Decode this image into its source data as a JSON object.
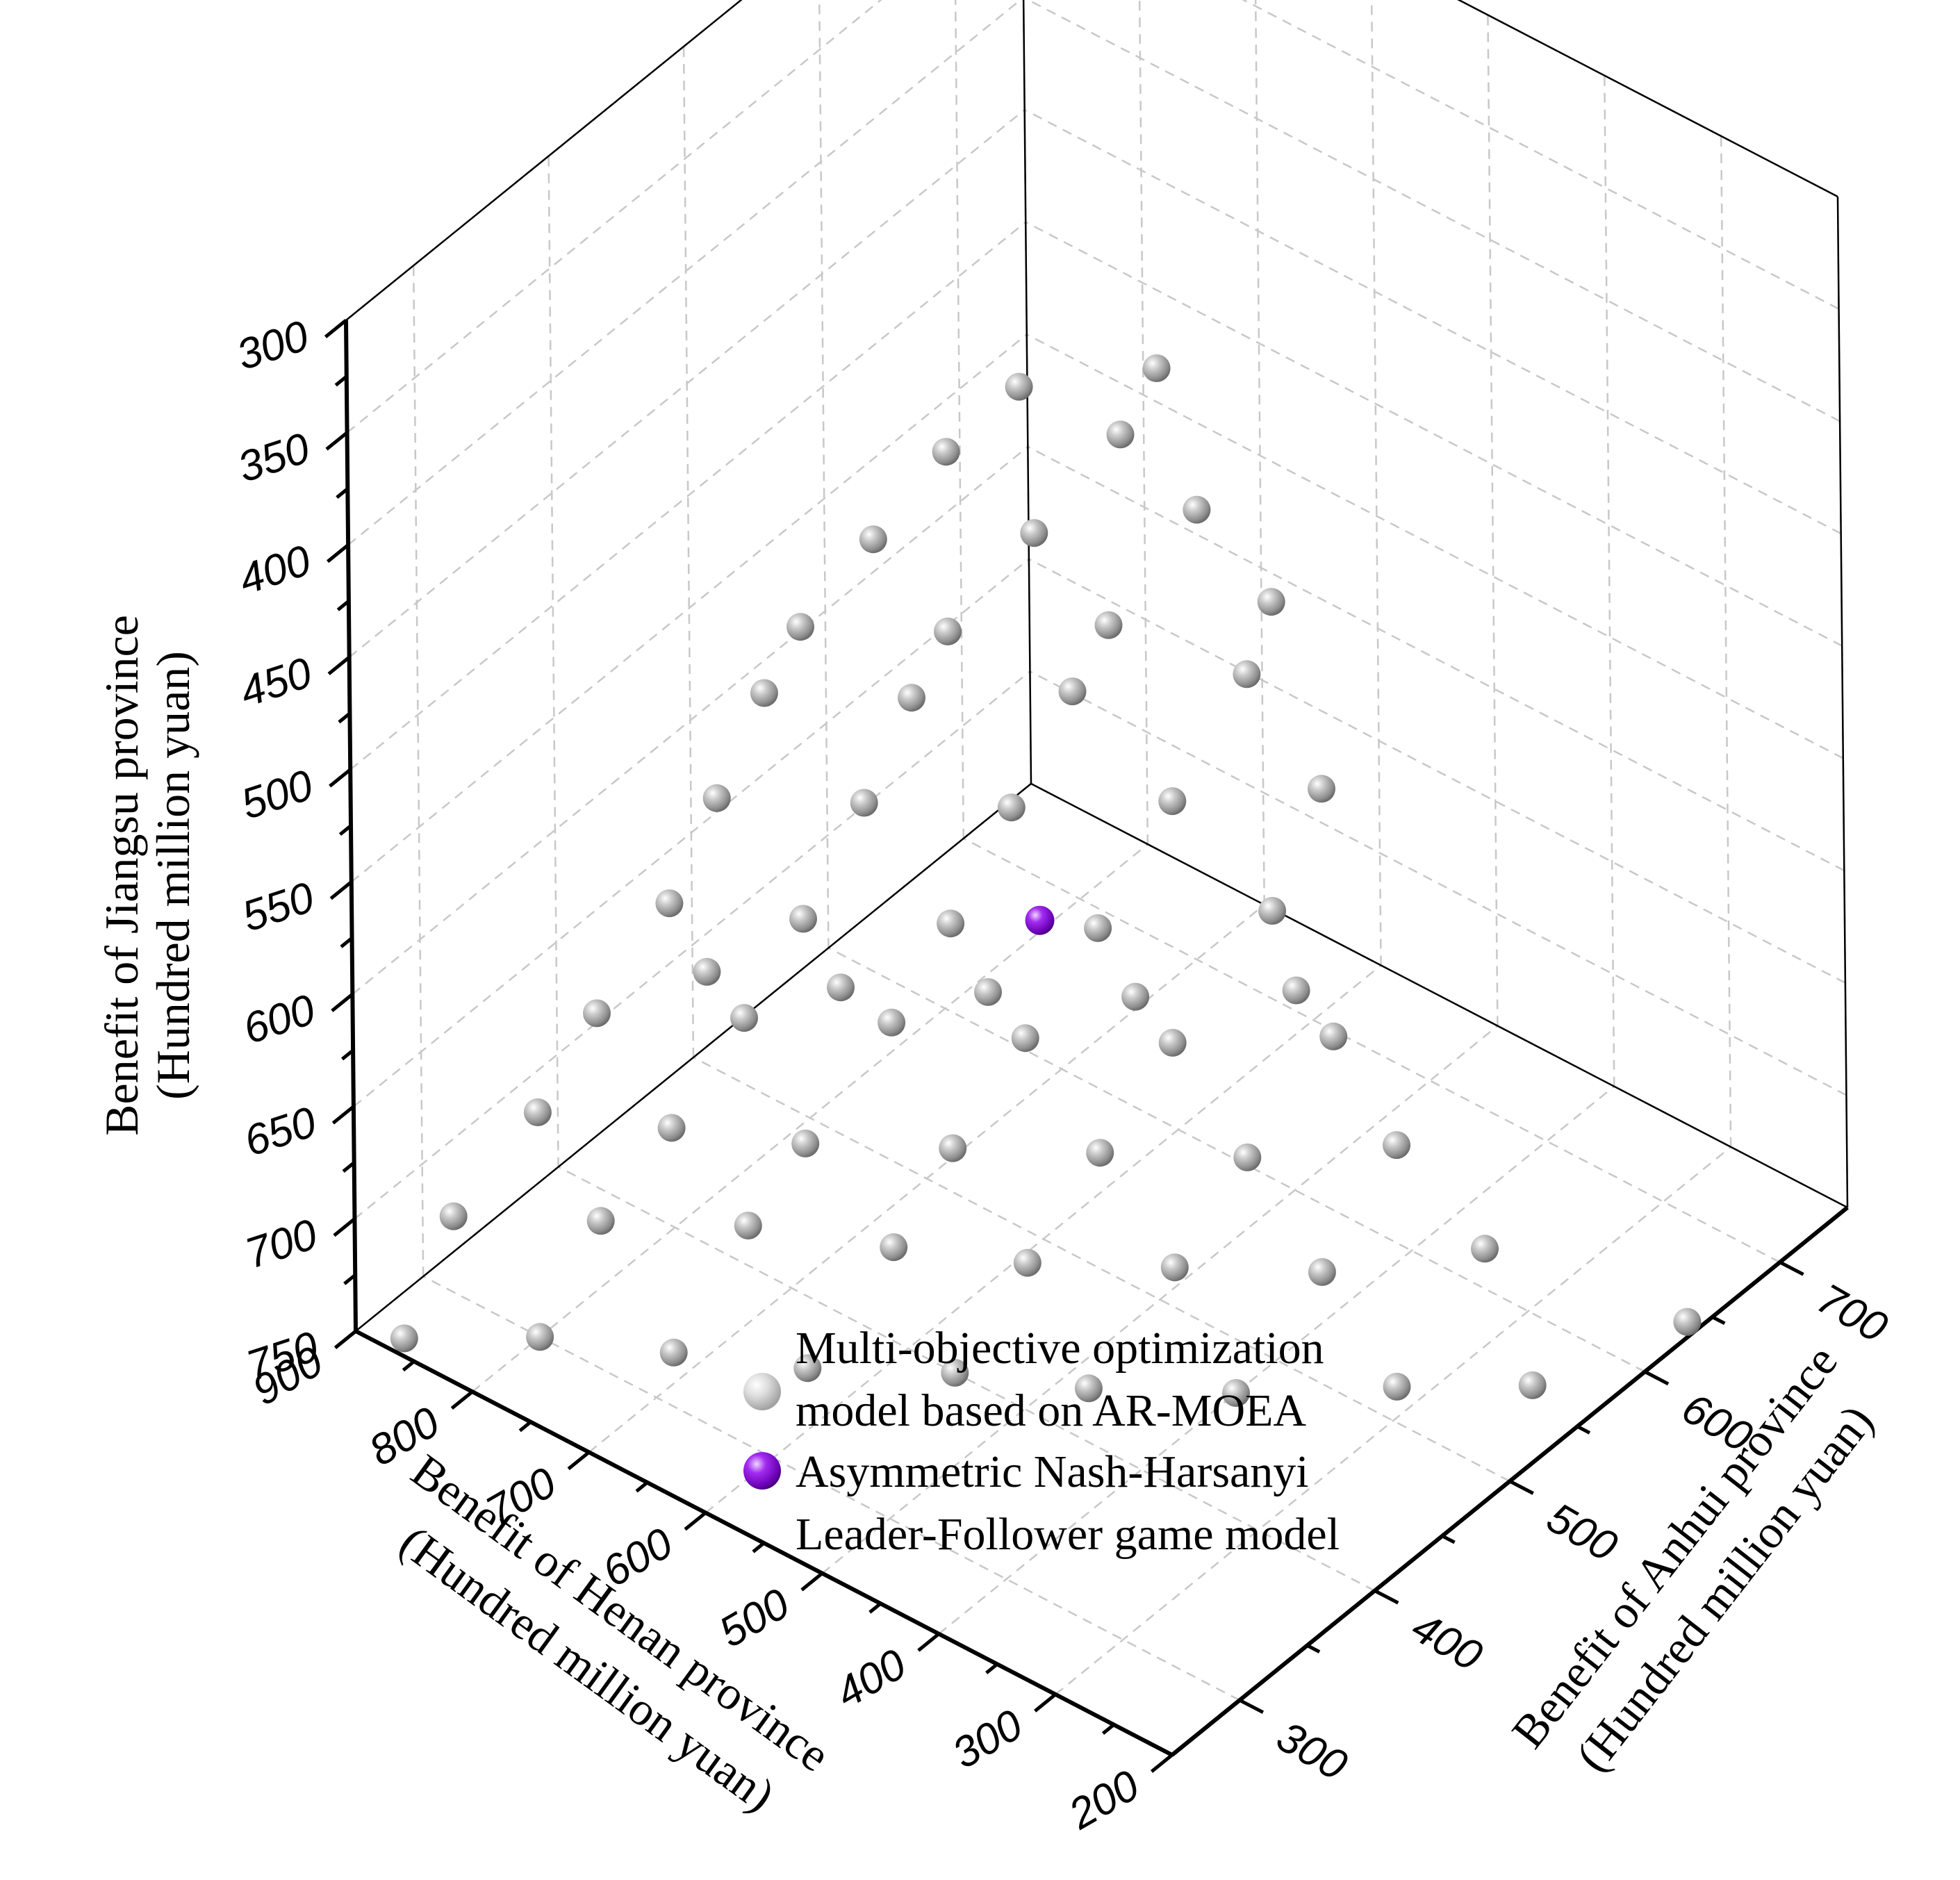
{
  "chart_data": {
    "type": "scatter3d",
    "title": "",
    "axes": {
      "henan": {
        "label_line1": "Benefit of Henan province",
        "label_line2": "(Hundred million yuan)",
        "ticks": [
          "900",
          "800",
          "700",
          "600",
          "500",
          "400",
          "300",
          "200"
        ],
        "range": [
          200,
          900
        ]
      },
      "anhui": {
        "label_line1": "Benefit of Anhui province",
        "label_line2": "(Hundred million yuan)",
        "ticks": [
          "300",
          "400",
          "500",
          "600",
          "700"
        ],
        "range": [
          250,
          750
        ]
      },
      "jiangsu": {
        "label_line1": "Benefit of Jiangsu province",
        "label_line2": "(Hundred million yuan)",
        "ticks": [
          "300",
          "350",
          "400",
          "450",
          "500",
          "550",
          "600",
          "650",
          "700",
          "750"
        ],
        "range": [
          300,
          750
        ]
      }
    },
    "legend": {
      "entries": [
        {
          "line1": "Multi-objective optimization",
          "line2": "model based on AR-MOEA",
          "color": "#bdbdbd"
        },
        {
          "line1": "Asymmetric Nash-Harsanyi",
          "line2": "Leader-Follower game model",
          "color": "#8b00e6"
        }
      ]
    },
    "colors": {
      "pareto": "#a8a8a8",
      "nash": "#8b00e6"
    },
    "series": [
      {
        "name": "Multi-objective optimization model based on AR-MOEA",
        "point_order": "henan, anhui, jiangsu",
        "points": [
          [
            870,
            260,
            750
          ],
          [
            800,
            300,
            750
          ],
          [
            720,
            330,
            750
          ],
          [
            640,
            360,
            750
          ],
          [
            560,
            400,
            750
          ],
          [
            480,
            430,
            750
          ],
          [
            400,
            470,
            750
          ],
          [
            320,
            520,
            750
          ],
          [
            250,
            560,
            750
          ],
          [
            210,
            640,
            750
          ],
          [
            850,
            280,
            700
          ],
          [
            770,
            320,
            700
          ],
          [
            690,
            360,
            700
          ],
          [
            600,
            390,
            700
          ],
          [
            520,
            420,
            700
          ],
          [
            440,
            460,
            700
          ],
          [
            360,
            500,
            700
          ],
          [
            290,
            560,
            700
          ],
          [
            800,
            300,
            650
          ],
          [
            720,
            330,
            650
          ],
          [
            640,
            360,
            650
          ],
          [
            560,
            400,
            650
          ],
          [
            480,
            440,
            650
          ],
          [
            400,
            480,
            650
          ],
          [
            330,
            530,
            650
          ],
          [
            760,
            310,
            600
          ],
          [
            680,
            350,
            600
          ],
          [
            600,
            390,
            600
          ],
          [
            520,
            420,
            600
          ],
          [
            440,
            460,
            600
          ],
          [
            360,
            510,
            600
          ],
          [
            700,
            340,
            580
          ],
          [
            620,
            370,
            580
          ],
          [
            540,
            410,
            580
          ],
          [
            460,
            450,
            580
          ],
          [
            380,
            500,
            580
          ],
          [
            720,
            330,
            550
          ],
          [
            640,
            360,
            550
          ],
          [
            560,
            400,
            550
          ],
          [
            480,
            440,
            550
          ],
          [
            400,
            500,
            550
          ],
          [
            690,
            340,
            500
          ],
          [
            610,
            380,
            500
          ],
          [
            530,
            420,
            500
          ],
          [
            450,
            470,
            500
          ],
          [
            380,
            520,
            500
          ],
          [
            660,
            350,
            450
          ],
          [
            580,
            390,
            450
          ],
          [
            500,
            440,
            450
          ],
          [
            420,
            500,
            450
          ],
          [
            640,
            360,
            420
          ],
          [
            560,
            400,
            420
          ],
          [
            480,
            450,
            420
          ],
          [
            410,
            510,
            420
          ],
          [
            600,
            380,
            380
          ],
          [
            520,
            430,
            380
          ],
          [
            450,
            490,
            380
          ],
          [
            560,
            400,
            340
          ],
          [
            480,
            460,
            340
          ],
          [
            520,
            420,
            310
          ],
          [
            460,
            470,
            310
          ]
        ]
      },
      {
        "name": "Asymmetric Nash-Harsanyi Leader-Follower game model",
        "point_order": "henan, anhui, jiangsu",
        "points": [
          [
            530,
            440,
            560
          ]
        ]
      }
    ]
  }
}
